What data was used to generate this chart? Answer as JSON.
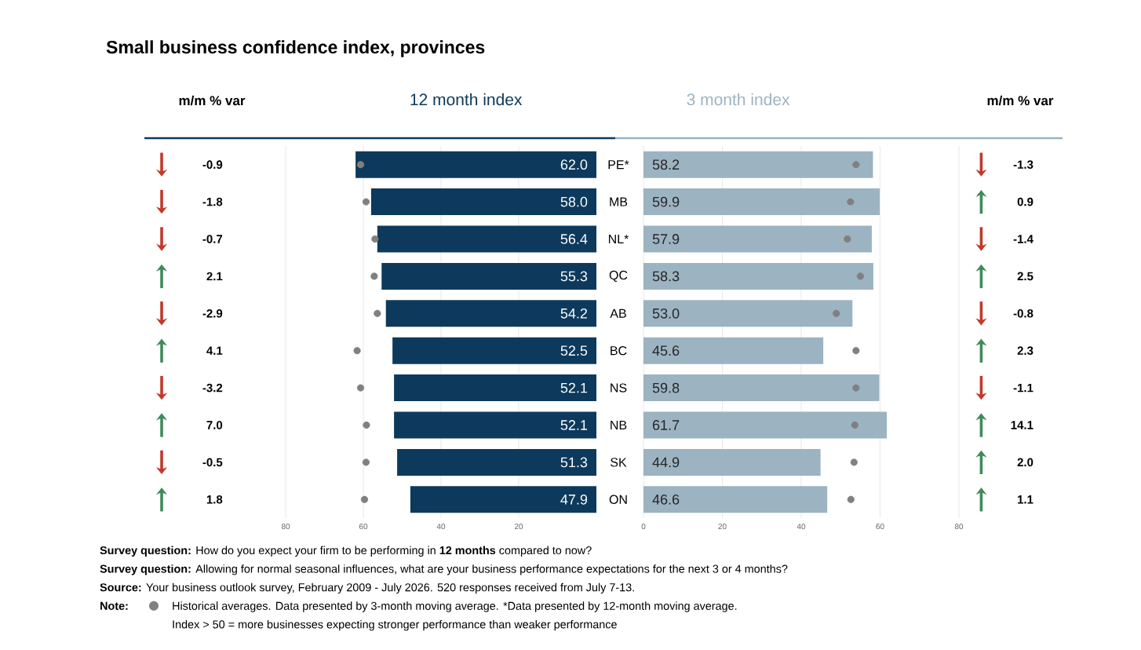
{
  "chart_data": [
    {
      "type": "other",
      "title": "Small business confidence index, provinces",
      "annotations": [
        "**Survey question:** How do you expect your firm to be performing in **12 months** compared to now?",
        "**Survey question:** Allowing for normal seasonal influences, what are your business performance expectations for the next 3 or 4 months?",
        "**Source:** Your business outlook survey, February 2009 - July 2026. 520 responses received from July 7-13.",
        "**Note:**",
        "Historical averages. Data presented by 3-month moving average. *Data presented by 12-month moving average.",
        "Index > 50 = more businesses expecting stronger performance than weaker performance"
      ]
    },
    {
      "type": "other",
      "title": "m/m % var",
      "values": [
        -0.9,
        -1.8,
        -0.7,
        2.1,
        -2.9,
        4.1,
        -3.2,
        7.0,
        -0.5,
        1.8
      ],
      "value_labels": [
        "-0.9",
        "-1.8",
        "-0.7",
        "2.1",
        "-2.9",
        "4.1",
        "-3.2",
        "7.0",
        "-0.5",
        "1.8"
      ],
      "colors": [
        "#c0392b",
        "#c0392b",
        "#c0392b",
        "#3f8a5a",
        "#c0392b",
        "#3f8a5a",
        "#c0392b",
        "#3f8a5a",
        "#c0392b",
        "#3f8a5a"
      ]
    },
    {
      "type": "bar",
      "orientation": "horizontal",
      "title": "12 month index",
      "categories": [
        "PE*",
        "MB",
        "NL*",
        "QC",
        "AB",
        "BC",
        "NS",
        "NB",
        "SK",
        "ON"
      ],
      "xlim": [
        80,
        0
      ],
      "xticks": [
        80,
        60,
        40,
        20
      ],
      "grid": "x",
      "marker": "circle",
      "series": [
        {
          "type": "bar",
          "color": "#0d3a5c",
          "values": [
            62.0,
            58.0,
            56.4,
            55.3,
            54.2,
            52.5,
            52.1,
            52.1,
            51.3,
            47.9
          ],
          "value_labels": [
            "62.0",
            "58.0",
            "56.4",
            "55.3",
            "54.2",
            "52.5",
            "52.1",
            "52.1",
            "51.3",
            "47.9"
          ]
        },
        {
          "type": "scatter",
          "color": "#808080",
          "values": [
            60.7,
            59.3,
            57.0,
            57.2,
            56.4,
            61.6,
            60.7,
            59.2,
            59.3,
            59.7
          ]
        }
      ]
    },
    {
      "type": "bar",
      "orientation": "horizontal",
      "title": "3 month index",
      "categories": [
        null,
        null,
        null,
        null,
        null,
        null,
        null,
        null,
        null,
        null
      ],
      "xlim": [
        0,
        80
      ],
      "xticks": [
        0,
        20,
        40,
        60,
        80
      ],
      "grid": "x",
      "marker": "circle",
      "series": [
        {
          "type": "bar",
          "color": "#9cb3c2",
          "values": [
            58.2,
            59.9,
            57.9,
            58.3,
            53.0,
            45.6,
            59.8,
            61.7,
            44.9,
            46.6
          ],
          "value_labels": [
            "58.2",
            "59.9",
            "57.9",
            "58.3",
            "53.0",
            "45.6",
            "59.8",
            "61.7",
            "44.9",
            "46.6"
          ]
        },
        {
          "type": "scatter",
          "color": "#808080",
          "values": [
            53.9,
            52.5,
            51.7,
            55.0,
            48.9,
            53.9,
            53.9,
            53.6,
            53.4,
            52.6
          ]
        }
      ]
    },
    {
      "type": "other",
      "title": "m/m % var",
      "values": [
        -1.3,
        0.9,
        -1.4,
        2.5,
        -0.8,
        2.3,
        -1.1,
        14.1,
        2.0,
        1.1
      ],
      "value_labels": [
        "-1.3",
        "0.9",
        "-1.4",
        "2.5",
        "-0.8",
        "2.3",
        "-1.1",
        "14.1",
        "2.0",
        "1.1"
      ],
      "colors": [
        "#c0392b",
        "#3f8a5a",
        "#c0392b",
        "#3f8a5a",
        "#c0392b",
        "#3f8a5a",
        "#c0392b",
        "#3f8a5a",
        "#3f8a5a",
        "#3f8a5a"
      ]
    }
  ]
}
